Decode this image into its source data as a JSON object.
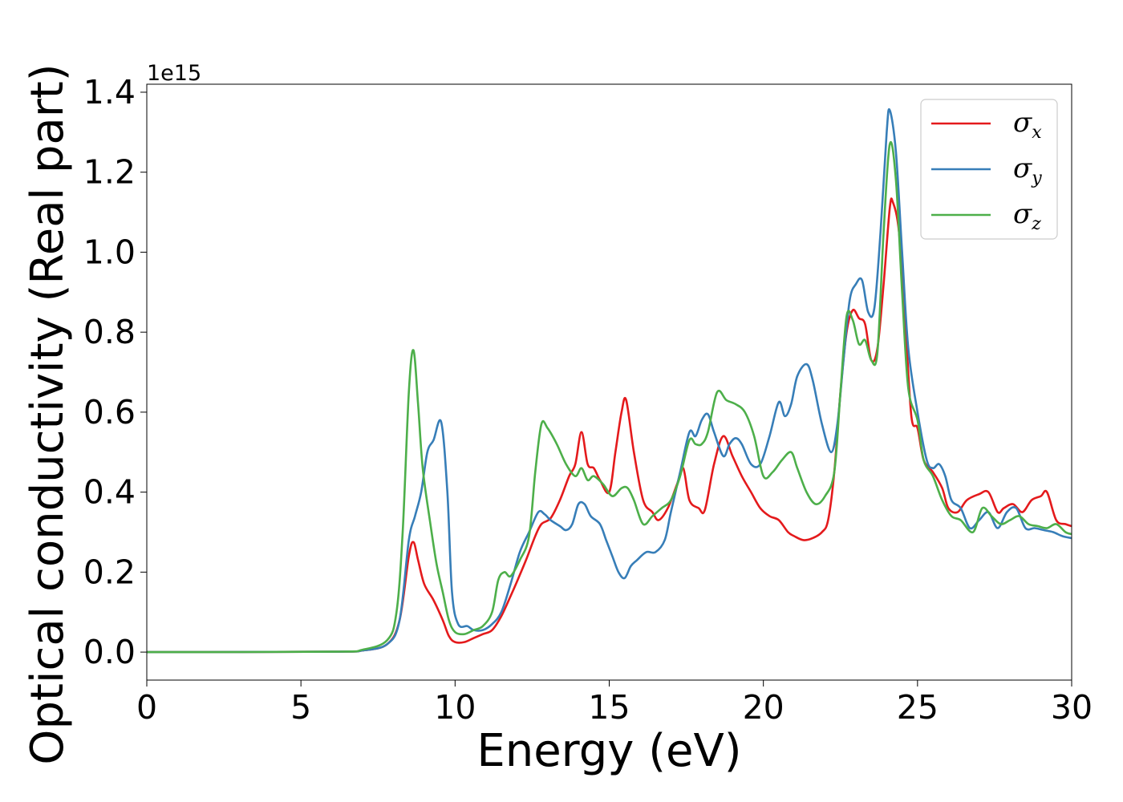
{
  "chart_data": {
    "type": "line",
    "xlabel": "Energy (eV)",
    "ylabel": "Optical conductivity (Real part)",
    "y_offset_text": "1e15",
    "xlim": [
      0,
      30
    ],
    "ylim": [
      -0.07,
      1.42
    ],
    "x_ticks": [
      0,
      5,
      10,
      15,
      20,
      25,
      30
    ],
    "x_tick_labels": [
      "0",
      "5",
      "10",
      "15",
      "20",
      "25",
      "30"
    ],
    "y_ticks": [
      0.0,
      0.2,
      0.4,
      0.6,
      0.8,
      1.0,
      1.2,
      1.4
    ],
    "y_tick_labels": [
      "0.0",
      "0.2",
      "0.4",
      "0.6",
      "0.8",
      "1.0",
      "1.2",
      "1.4"
    ],
    "grid": false,
    "legend": {
      "position": "top-right"
    },
    "series": [
      {
        "name": "σ",
        "sub": "x",
        "color": "#e41a1c",
        "points": [
          [
            0,
            0
          ],
          [
            6,
            0.001
          ],
          [
            7,
            0.004
          ],
          [
            7.8,
            0.02
          ],
          [
            8.2,
            0.08
          ],
          [
            8.5,
            0.24
          ],
          [
            8.65,
            0.275
          ],
          [
            8.8,
            0.23
          ],
          [
            9.0,
            0.17
          ],
          [
            9.3,
            0.13
          ],
          [
            9.6,
            0.08
          ],
          [
            9.8,
            0.04
          ],
          [
            10.0,
            0.025
          ],
          [
            10.3,
            0.025
          ],
          [
            10.6,
            0.035
          ],
          [
            10.9,
            0.045
          ],
          [
            11.2,
            0.055
          ],
          [
            11.5,
            0.09
          ],
          [
            11.8,
            0.14
          ],
          [
            12.0,
            0.175
          ],
          [
            12.3,
            0.23
          ],
          [
            12.6,
            0.29
          ],
          [
            12.8,
            0.32
          ],
          [
            13.1,
            0.335
          ],
          [
            13.4,
            0.38
          ],
          [
            13.7,
            0.44
          ],
          [
            13.9,
            0.47
          ],
          [
            14.1,
            0.55
          ],
          [
            14.3,
            0.47
          ],
          [
            14.5,
            0.46
          ],
          [
            14.7,
            0.43
          ],
          [
            15.0,
            0.4
          ],
          [
            15.2,
            0.5
          ],
          [
            15.4,
            0.6
          ],
          [
            15.55,
            0.63
          ],
          [
            15.8,
            0.5
          ],
          [
            16.1,
            0.38
          ],
          [
            16.4,
            0.35
          ],
          [
            16.6,
            0.33
          ],
          [
            16.9,
            0.36
          ],
          [
            17.2,
            0.42
          ],
          [
            17.4,
            0.46
          ],
          [
            17.6,
            0.38
          ],
          [
            17.9,
            0.36
          ],
          [
            18.1,
            0.355
          ],
          [
            18.4,
            0.47
          ],
          [
            18.7,
            0.54
          ],
          [
            19.0,
            0.49
          ],
          [
            19.3,
            0.44
          ],
          [
            19.6,
            0.4
          ],
          [
            19.9,
            0.36
          ],
          [
            20.2,
            0.34
          ],
          [
            20.5,
            0.33
          ],
          [
            20.8,
            0.3
          ],
          [
            21.0,
            0.29
          ],
          [
            21.3,
            0.28
          ],
          [
            21.6,
            0.285
          ],
          [
            21.9,
            0.3
          ],
          [
            22.1,
            0.33
          ],
          [
            22.3,
            0.45
          ],
          [
            22.5,
            0.65
          ],
          [
            22.7,
            0.8
          ],
          [
            22.9,
            0.855
          ],
          [
            23.1,
            0.835
          ],
          [
            23.3,
            0.82
          ],
          [
            23.5,
            0.73
          ],
          [
            23.7,
            0.76
          ],
          [
            23.9,
            0.92
          ],
          [
            24.1,
            1.11
          ],
          [
            24.2,
            1.125
          ],
          [
            24.4,
            1.05
          ],
          [
            24.6,
            0.83
          ],
          [
            24.8,
            0.59
          ],
          [
            25.0,
            0.56
          ],
          [
            25.2,
            0.48
          ],
          [
            25.5,
            0.45
          ],
          [
            25.8,
            0.41
          ],
          [
            26.0,
            0.36
          ],
          [
            26.3,
            0.35
          ],
          [
            26.6,
            0.38
          ],
          [
            27.0,
            0.395
          ],
          [
            27.3,
            0.4
          ],
          [
            27.6,
            0.35
          ],
          [
            27.8,
            0.36
          ],
          [
            28.1,
            0.37
          ],
          [
            28.4,
            0.35
          ],
          [
            28.7,
            0.38
          ],
          [
            29.0,
            0.39
          ],
          [
            29.2,
            0.4
          ],
          [
            29.5,
            0.33
          ],
          [
            29.8,
            0.32
          ],
          [
            30,
            0.315
          ]
        ]
      },
      {
        "name": "σ",
        "sub": "y",
        "color": "#377eb8",
        "points": [
          [
            0,
            0
          ],
          [
            6,
            0.001
          ],
          [
            7,
            0.004
          ],
          [
            7.8,
            0.02
          ],
          [
            8.2,
            0.08
          ],
          [
            8.5,
            0.28
          ],
          [
            8.7,
            0.34
          ],
          [
            8.9,
            0.4
          ],
          [
            9.1,
            0.5
          ],
          [
            9.3,
            0.53
          ],
          [
            9.55,
            0.575
          ],
          [
            9.75,
            0.4
          ],
          [
            9.9,
            0.15
          ],
          [
            10.1,
            0.07
          ],
          [
            10.4,
            0.065
          ],
          [
            10.6,
            0.055
          ],
          [
            10.9,
            0.055
          ],
          [
            11.2,
            0.07
          ],
          [
            11.5,
            0.1
          ],
          [
            11.8,
            0.17
          ],
          [
            12.1,
            0.25
          ],
          [
            12.4,
            0.3
          ],
          [
            12.7,
            0.35
          ],
          [
            12.9,
            0.345
          ],
          [
            13.1,
            0.33
          ],
          [
            13.4,
            0.315
          ],
          [
            13.6,
            0.305
          ],
          [
            13.8,
            0.32
          ],
          [
            14.0,
            0.37
          ],
          [
            14.2,
            0.37
          ],
          [
            14.4,
            0.34
          ],
          [
            14.7,
            0.32
          ],
          [
            14.9,
            0.28
          ],
          [
            15.1,
            0.24
          ],
          [
            15.3,
            0.2
          ],
          [
            15.5,
            0.185
          ],
          [
            15.7,
            0.215
          ],
          [
            15.9,
            0.23
          ],
          [
            16.2,
            0.25
          ],
          [
            16.5,
            0.25
          ],
          [
            16.8,
            0.28
          ],
          [
            17.0,
            0.35
          ],
          [
            17.3,
            0.45
          ],
          [
            17.6,
            0.55
          ],
          [
            17.8,
            0.54
          ],
          [
            18.0,
            0.58
          ],
          [
            18.2,
            0.595
          ],
          [
            18.4,
            0.55
          ],
          [
            18.7,
            0.49
          ],
          [
            18.9,
            0.52
          ],
          [
            19.1,
            0.535
          ],
          [
            19.3,
            0.52
          ],
          [
            19.6,
            0.47
          ],
          [
            19.9,
            0.47
          ],
          [
            20.2,
            0.54
          ],
          [
            20.5,
            0.625
          ],
          [
            20.7,
            0.59
          ],
          [
            20.9,
            0.62
          ],
          [
            21.1,
            0.69
          ],
          [
            21.4,
            0.72
          ],
          [
            21.6,
            0.68
          ],
          [
            21.9,
            0.57
          ],
          [
            22.2,
            0.5
          ],
          [
            22.4,
            0.57
          ],
          [
            22.6,
            0.73
          ],
          [
            22.8,
            0.88
          ],
          [
            23.0,
            0.92
          ],
          [
            23.2,
            0.93
          ],
          [
            23.4,
            0.85
          ],
          [
            23.6,
            0.86
          ],
          [
            23.8,
            1.05
          ],
          [
            24.0,
            1.3
          ],
          [
            24.1,
            1.355
          ],
          [
            24.3,
            1.25
          ],
          [
            24.5,
            1.0
          ],
          [
            24.7,
            0.76
          ],
          [
            25.0,
            0.6
          ],
          [
            25.3,
            0.48
          ],
          [
            25.5,
            0.46
          ],
          [
            25.7,
            0.47
          ],
          [
            25.9,
            0.44
          ],
          [
            26.1,
            0.38
          ],
          [
            26.4,
            0.36
          ],
          [
            26.7,
            0.31
          ],
          [
            27.0,
            0.33
          ],
          [
            27.3,
            0.35
          ],
          [
            27.6,
            0.31
          ],
          [
            27.9,
            0.35
          ],
          [
            28.2,
            0.36
          ],
          [
            28.5,
            0.31
          ],
          [
            28.8,
            0.31
          ],
          [
            29.1,
            0.305
          ],
          [
            29.4,
            0.3
          ],
          [
            29.7,
            0.29
          ],
          [
            30,
            0.285
          ]
        ]
      },
      {
        "name": "σ",
        "sub": "z",
        "color": "#4daf4a",
        "points": [
          [
            0,
            0
          ],
          [
            6,
            0.001
          ],
          [
            7,
            0.006
          ],
          [
            7.8,
            0.03
          ],
          [
            8.1,
            0.1
          ],
          [
            8.3,
            0.3
          ],
          [
            8.5,
            0.65
          ],
          [
            8.65,
            0.755
          ],
          [
            8.8,
            0.62
          ],
          [
            8.95,
            0.46
          ],
          [
            9.2,
            0.32
          ],
          [
            9.4,
            0.22
          ],
          [
            9.6,
            0.15
          ],
          [
            9.8,
            0.08
          ],
          [
            10.0,
            0.05
          ],
          [
            10.3,
            0.045
          ],
          [
            10.6,
            0.055
          ],
          [
            10.9,
            0.065
          ],
          [
            11.2,
            0.1
          ],
          [
            11.4,
            0.18
          ],
          [
            11.6,
            0.2
          ],
          [
            11.8,
            0.19
          ],
          [
            12.1,
            0.23
          ],
          [
            12.4,
            0.29
          ],
          [
            12.6,
            0.45
          ],
          [
            12.8,
            0.57
          ],
          [
            13.0,
            0.56
          ],
          [
            13.3,
            0.52
          ],
          [
            13.6,
            0.47
          ],
          [
            13.9,
            0.44
          ],
          [
            14.1,
            0.46
          ],
          [
            14.3,
            0.43
          ],
          [
            14.5,
            0.44
          ],
          [
            14.8,
            0.42
          ],
          [
            15.1,
            0.39
          ],
          [
            15.4,
            0.41
          ],
          [
            15.6,
            0.41
          ],
          [
            15.8,
            0.38
          ],
          [
            16.1,
            0.32
          ],
          [
            16.4,
            0.34
          ],
          [
            16.7,
            0.36
          ],
          [
            17.0,
            0.38
          ],
          [
            17.3,
            0.44
          ],
          [
            17.6,
            0.53
          ],
          [
            17.8,
            0.52
          ],
          [
            18.0,
            0.52
          ],
          [
            18.2,
            0.55
          ],
          [
            18.5,
            0.65
          ],
          [
            18.8,
            0.63
          ],
          [
            19.1,
            0.62
          ],
          [
            19.4,
            0.6
          ],
          [
            19.7,
            0.54
          ],
          [
            20.0,
            0.44
          ],
          [
            20.3,
            0.45
          ],
          [
            20.6,
            0.48
          ],
          [
            20.9,
            0.5
          ],
          [
            21.1,
            0.46
          ],
          [
            21.4,
            0.4
          ],
          [
            21.7,
            0.37
          ],
          [
            22.0,
            0.39
          ],
          [
            22.3,
            0.45
          ],
          [
            22.5,
            0.65
          ],
          [
            22.7,
            0.84
          ],
          [
            22.9,
            0.83
          ],
          [
            23.1,
            0.77
          ],
          [
            23.3,
            0.78
          ],
          [
            23.5,
            0.73
          ],
          [
            23.7,
            0.75
          ],
          [
            23.9,
            1.05
          ],
          [
            24.1,
            1.27
          ],
          [
            24.3,
            1.18
          ],
          [
            24.5,
            0.9
          ],
          [
            24.7,
            0.66
          ],
          [
            25.0,
            0.58
          ],
          [
            25.2,
            0.48
          ],
          [
            25.5,
            0.44
          ],
          [
            25.8,
            0.38
          ],
          [
            26.1,
            0.34
          ],
          [
            26.4,
            0.33
          ],
          [
            26.8,
            0.3
          ],
          [
            27.1,
            0.36
          ],
          [
            27.4,
            0.34
          ],
          [
            27.7,
            0.32
          ],
          [
            28.0,
            0.33
          ],
          [
            28.3,
            0.34
          ],
          [
            28.6,
            0.32
          ],
          [
            28.9,
            0.315
          ],
          [
            29.2,
            0.31
          ],
          [
            29.5,
            0.32
          ],
          [
            29.8,
            0.3
          ],
          [
            30,
            0.295
          ]
        ]
      }
    ]
  }
}
